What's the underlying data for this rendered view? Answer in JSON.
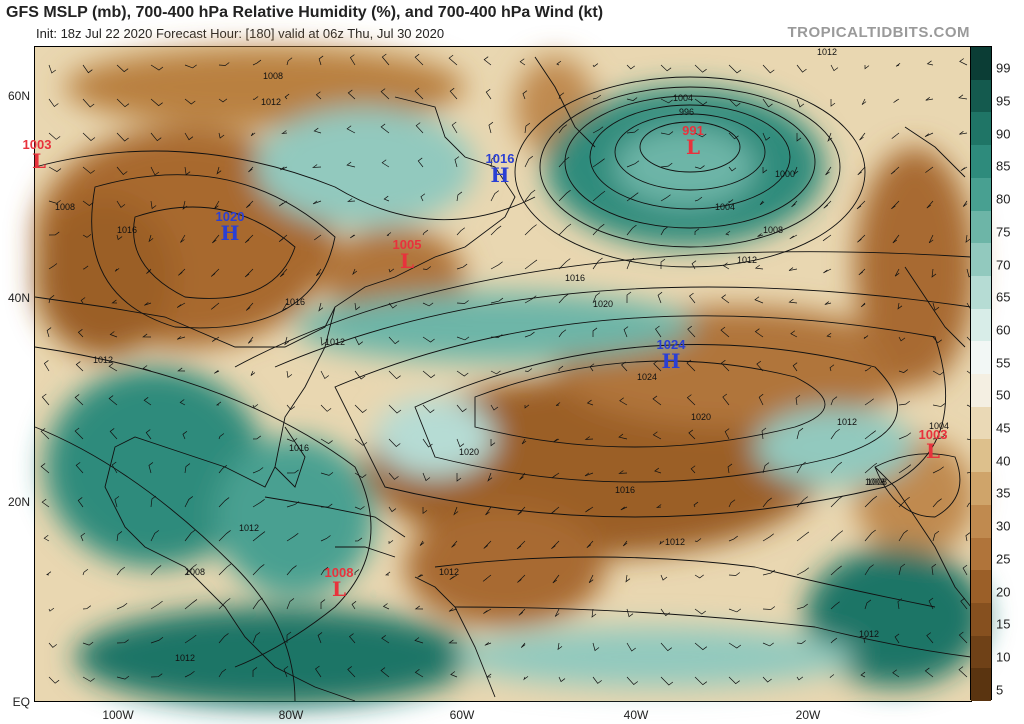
{
  "header": {
    "title": "GFS MSLP (mb), 700-400 hPa Relative Humidity (%), and 700-400 hPa Wind (kt)",
    "subtitle": "Init: 18z Jul 22 2020   Forecast Hour: [180]   valid at 06z Thu, Jul 30 2020",
    "brand": "TROPICALTIDBITS.COM"
  },
  "colorbar": {
    "labels": [
      "99",
      "95",
      "90",
      "85",
      "80",
      "75",
      "70",
      "65",
      "60",
      "55",
      "50",
      "45",
      "40",
      "35",
      "30",
      "25",
      "20",
      "15",
      "10",
      "5"
    ],
    "colors": [
      "#0b3d35",
      "#145a4e",
      "#1f7566",
      "#2e8b7c",
      "#48a091",
      "#6db5a7",
      "#92c9be",
      "#b6dcd4",
      "#d8ede8",
      "#f2f7f5",
      "#f4efe2",
      "#ead9b6",
      "#ddc08c",
      "#cfa46a",
      "#c08a4f",
      "#b0743a",
      "#9b5f28",
      "#86501f",
      "#6f4117",
      "#5a3410"
    ]
  },
  "axes": {
    "lat_labels": [
      "60N",
      "40N",
      "20N",
      "EQ"
    ],
    "lon_labels": [
      "100W",
      "80W",
      "60W",
      "40W",
      "20W"
    ]
  },
  "pressure_systems": [
    {
      "type": "L",
      "value": "1003",
      "color": "#e8323c"
    },
    {
      "type": "H",
      "value": "1020",
      "color": "#2a3fd4"
    },
    {
      "type": "H",
      "value": "1016",
      "color": "#2a3fd4"
    },
    {
      "type": "L",
      "value": "1005",
      "color": "#e8323c"
    },
    {
      "type": "L",
      "value": "991",
      "color": "#e8323c"
    },
    {
      "type": "H",
      "value": "1024",
      "color": "#2a3fd4"
    },
    {
      "type": "L",
      "value": "1003",
      "color": "#e8323c"
    },
    {
      "type": "L",
      "value": "1008",
      "color": "#e8323c"
    }
  ],
  "isobar_labels": [
    "1012",
    "1008",
    "1012",
    "1016",
    "1008",
    "1004",
    "996",
    "1000",
    "1004",
    "1008",
    "1012",
    "1016",
    "1020",
    "1024",
    "1020",
    "1016",
    "1012",
    "1008",
    "1004",
    "1012",
    "1016",
    "1012",
    "1012",
    "1012",
    "1012",
    "1012",
    "1008",
    "1016",
    "1020",
    "1012",
    "1008"
  ]
}
